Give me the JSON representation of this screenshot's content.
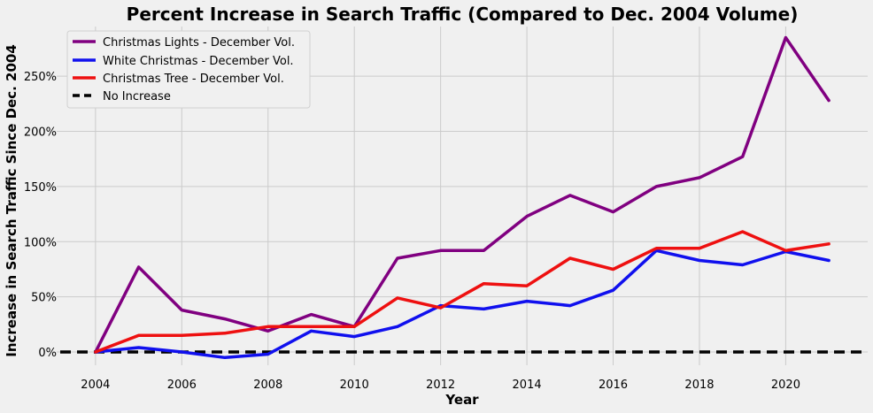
{
  "chart_data": {
    "type": "line",
    "title": "Percent Increase in Search Traffic (Compared to Dec. 2004 Volume)",
    "xlabel": "Year",
    "ylabel": "Increase in Search Traffic Since Dec. 2004",
    "x": [
      2004,
      2005,
      2006,
      2007,
      2008,
      2009,
      2010,
      2011,
      2012,
      2013,
      2014,
      2015,
      2016,
      2017,
      2018,
      2019,
      2020,
      2021
    ],
    "xlim": [
      2003.1,
      2021.9
    ],
    "ylim": [
      -12,
      295
    ],
    "x_ticks": [
      2004,
      2006,
      2008,
      2010,
      2012,
      2014,
      2016,
      2018,
      2020
    ],
    "y_ticks": [
      0,
      50,
      100,
      150,
      200,
      250
    ],
    "y_tick_labels": [
      "0%",
      "50%",
      "100%",
      "150%",
      "200%",
      "250%"
    ],
    "grid": true,
    "legend_position": "top-left",
    "series": [
      {
        "name": "Christmas Lights - December Vol.",
        "color": "#800080",
        "values": [
          0,
          77,
          38,
          30,
          19,
          34,
          23,
          85,
          92,
          92,
          123,
          142,
          127,
          150,
          158,
          177,
          285,
          228
        ]
      },
      {
        "name": "White Christmas - December Vol.",
        "color": "#1010ee",
        "values": [
          0,
          4,
          0,
          -5,
          -2,
          19,
          14,
          23,
          42,
          39,
          46,
          42,
          56,
          92,
          83,
          79,
          91,
          83
        ]
      },
      {
        "name": "Christmas Tree - December Vol.",
        "color": "#ee1010",
        "values": [
          0,
          15,
          15,
          17,
          23,
          23,
          23,
          49,
          40,
          62,
          60,
          85,
          75,
          94,
          94,
          109,
          92,
          98
        ]
      }
    ],
    "reference_line": {
      "name": "No Increase",
      "y": 0,
      "color": "#000000",
      "style": "dashed"
    }
  }
}
